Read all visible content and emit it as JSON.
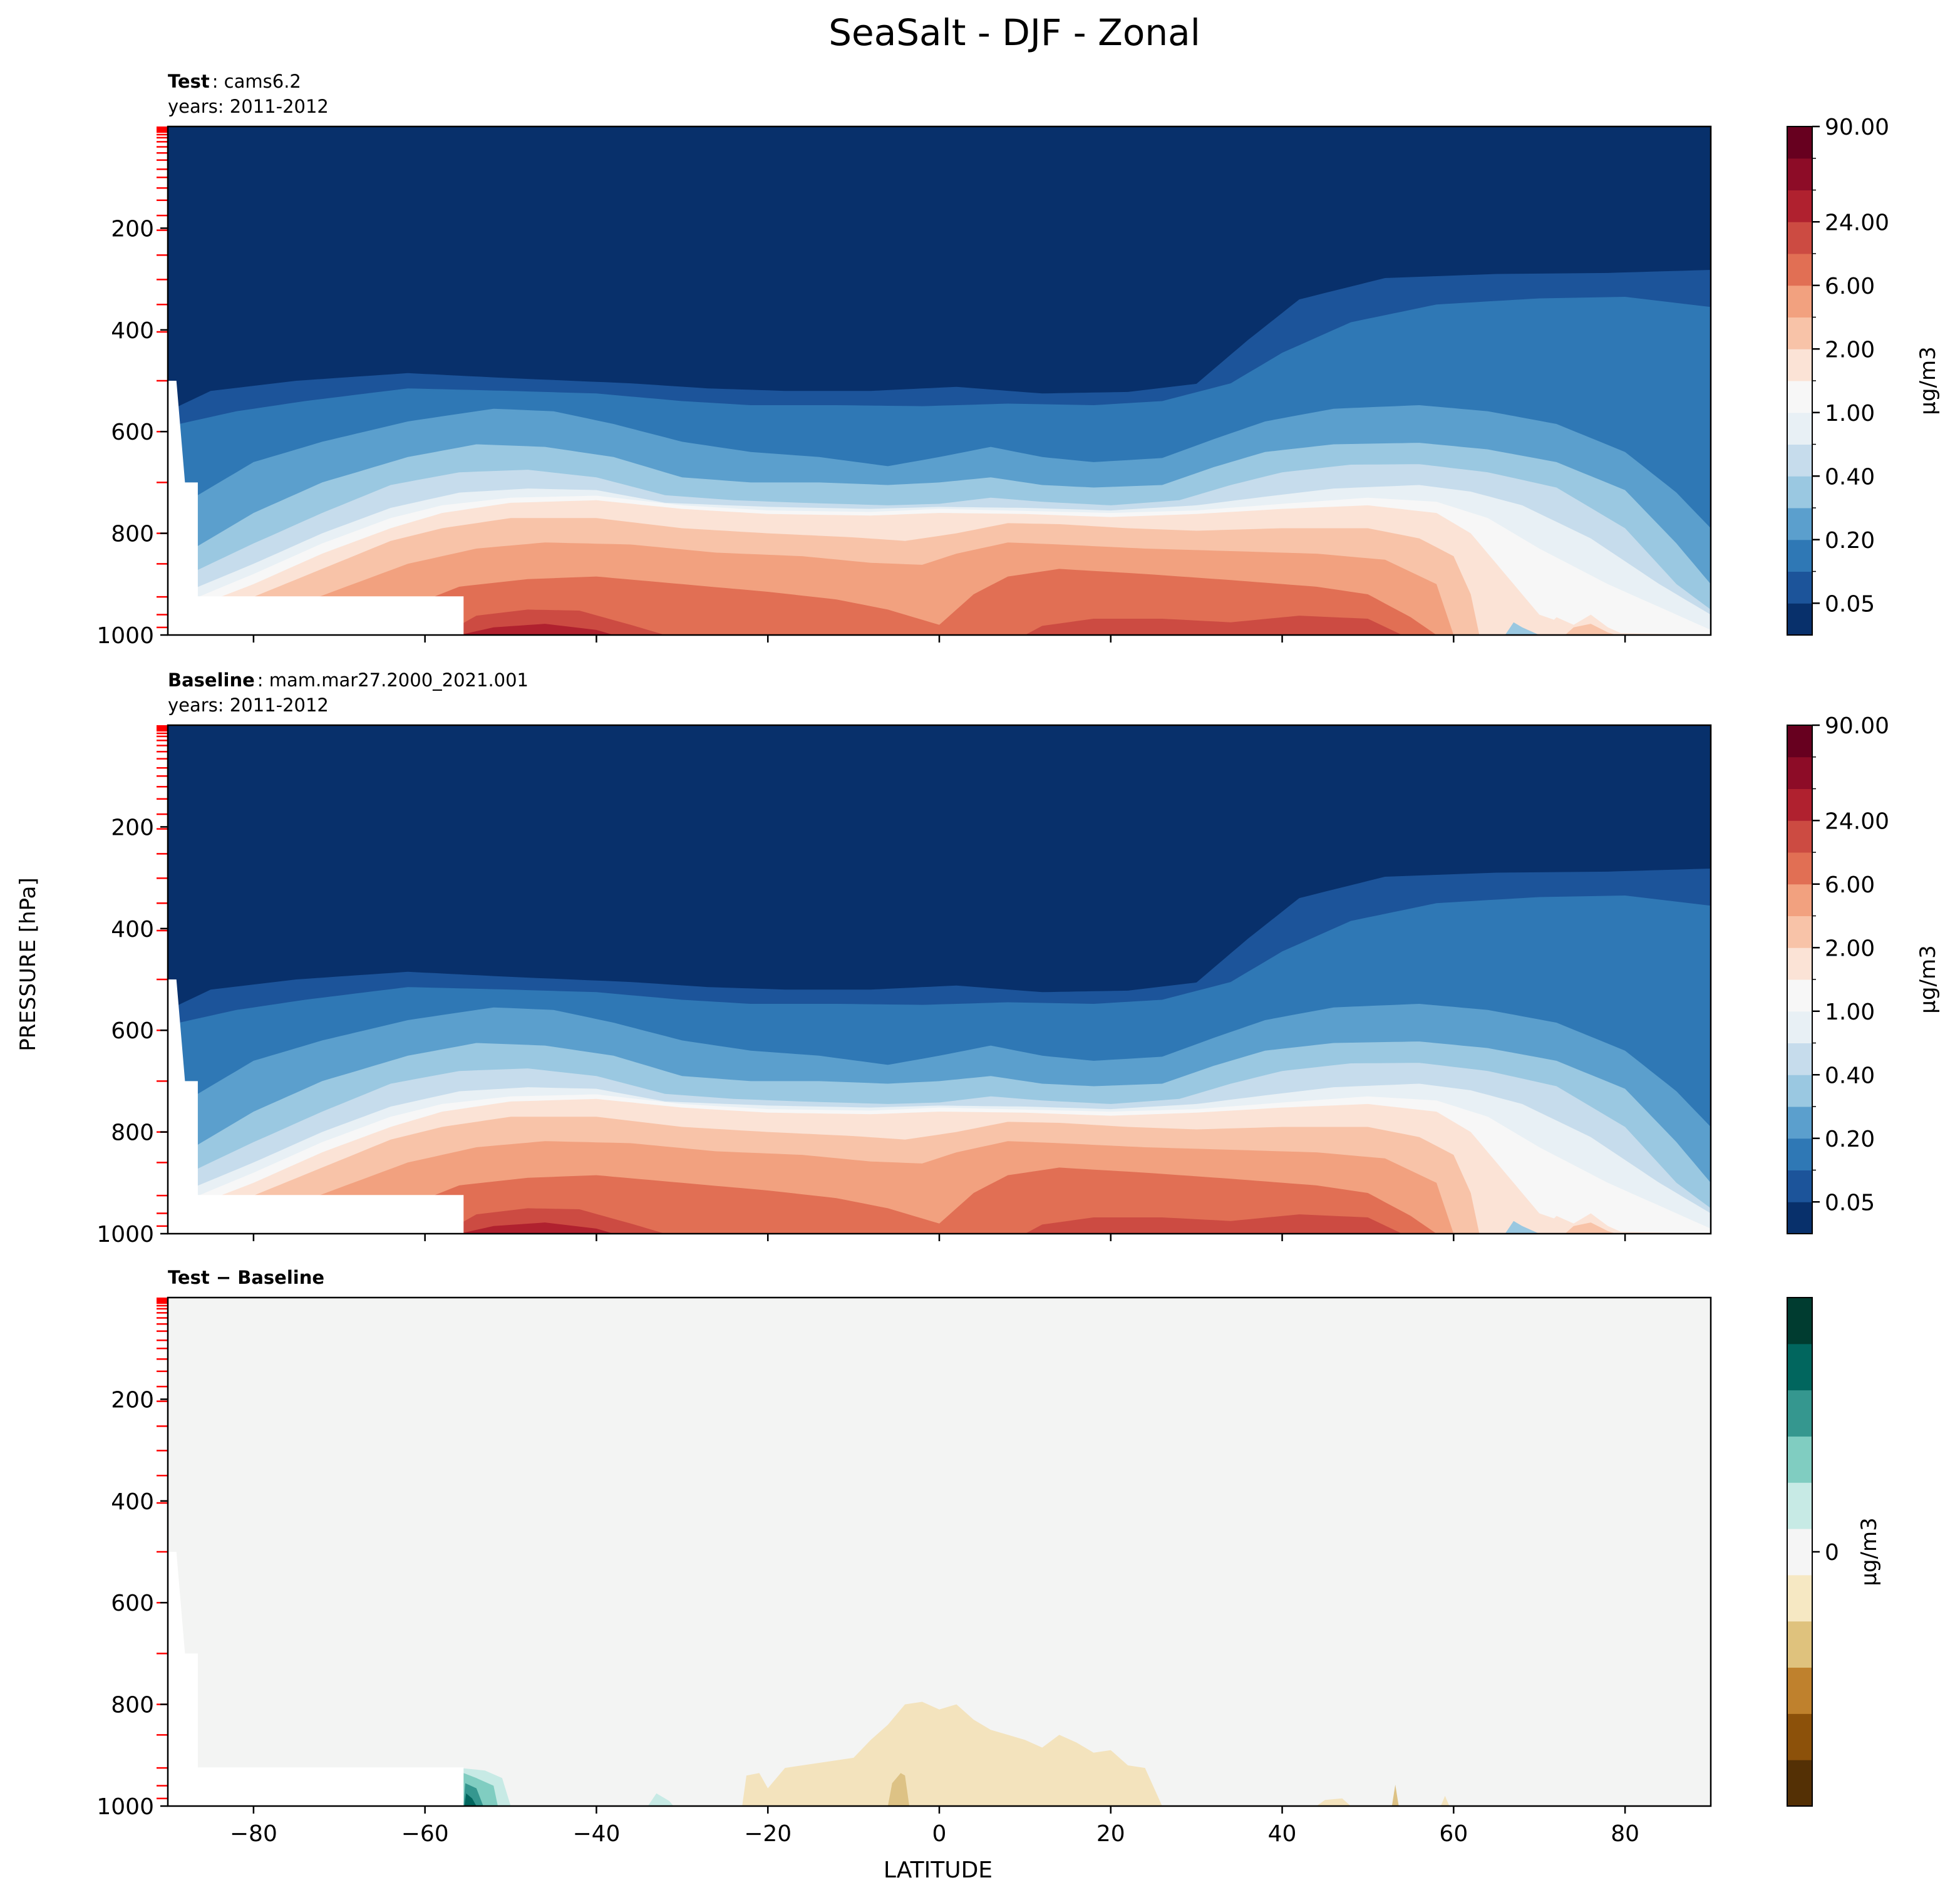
{
  "figure": {
    "title": "SeaSalt - DJF - Zonal",
    "ylabel": "PRESSURE [hPa]",
    "xlabel": "LATITUDE"
  },
  "colors": {
    "sequential": [
      "#08306b",
      "#1c549a",
      "#2f78b5",
      "#5b9fcd",
      "#9ac8e1",
      "#c6dcec",
      "#e8f0f5",
      "#f7f7f7",
      "#fbe3d6",
      "#f8c3a8",
      "#f2a17f",
      "#e16f54",
      "#cc4b42",
      "#b0212f",
      "#8d0c27",
      "#67001f"
    ],
    "diverging": [
      "#543005",
      "#8c510a",
      "#bf812d",
      "#dfc27d",
      "#f6e8c3",
      "#f5f5f5",
      "#c7eae5",
      "#80cdc1",
      "#35978f",
      "#01665e",
      "#003c30"
    ],
    "model_level_ticks": "#ff0000"
  },
  "chart_data": [
    {
      "type": "heatmap",
      "panel": "test",
      "label_bold": "Test",
      "label_value": "cams6.2",
      "years": "years: 2011-2012",
      "xlim": [
        -90,
        90
      ],
      "ylim": [
        1000,
        0
      ],
      "y_inverted": true,
      "xticks": [
        -80,
        -60,
        -40,
        -20,
        0,
        20,
        40,
        60,
        80
      ],
      "yticks": [
        200,
        400,
        600,
        800,
        1000
      ],
      "colorbar": {
        "label": "μg/m3",
        "tick_labels": [
          "0.05",
          "0.20",
          "0.40",
          "1.00",
          "2.00",
          "6.00",
          "24.00",
          "90.00"
        ],
        "levels": 16
      }
    },
    {
      "type": "heatmap",
      "panel": "baseline",
      "label_bold": "Baseline",
      "label_value": "mam.mar27.2000_2021.001",
      "years": "years: 2011-2012",
      "xlim": [
        -90,
        90
      ],
      "ylim": [
        1000,
        0
      ],
      "y_inverted": true,
      "xticks": [
        -80,
        -60,
        -40,
        -20,
        0,
        20,
        40,
        60,
        80
      ],
      "yticks": [
        200,
        400,
        600,
        800,
        1000
      ],
      "colorbar": {
        "label": "μg/m3",
        "tick_labels": [
          "0.05",
          "0.20",
          "0.40",
          "1.00",
          "2.00",
          "6.00",
          "24.00",
          "90.00"
        ],
        "levels": 16
      }
    },
    {
      "type": "heatmap",
      "panel": "difference",
      "label_bold": "Test − Baseline",
      "label_value": "",
      "years": "",
      "xlim": [
        -90,
        90
      ],
      "ylim": [
        1000,
        0
      ],
      "y_inverted": true,
      "xticks": [
        -80,
        -60,
        -40,
        -20,
        0,
        20,
        40,
        60,
        80
      ],
      "yticks": [
        200,
        400,
        600,
        800,
        1000
      ],
      "colorbar": {
        "label": "μg/m3",
        "tick_labels": [
          "0"
        ],
        "levels": 11
      }
    }
  ]
}
